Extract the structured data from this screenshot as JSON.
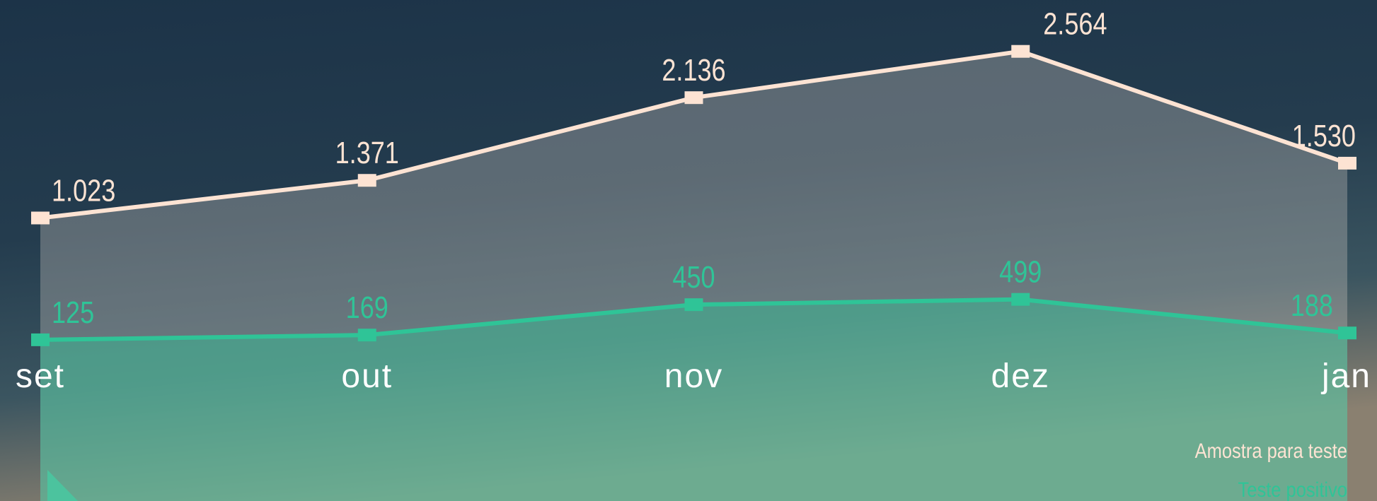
{
  "chart_data": {
    "type": "line",
    "categories": [
      "set",
      "out",
      "nov",
      "dez",
      "jan"
    ],
    "series": [
      {
        "name": "Amostra para teste",
        "color": "#fde3d3",
        "values": [
          1023,
          1371,
          2136,
          2564,
          1530
        ],
        "value_labels": [
          "1.023",
          "1.371",
          "2.136",
          "2.564",
          "1.530"
        ]
      },
      {
        "name": "Teste positivo",
        "color": "#2fc497",
        "values": [
          125,
          169,
          450,
          499,
          188
        ]
      }
    ]
  }
}
